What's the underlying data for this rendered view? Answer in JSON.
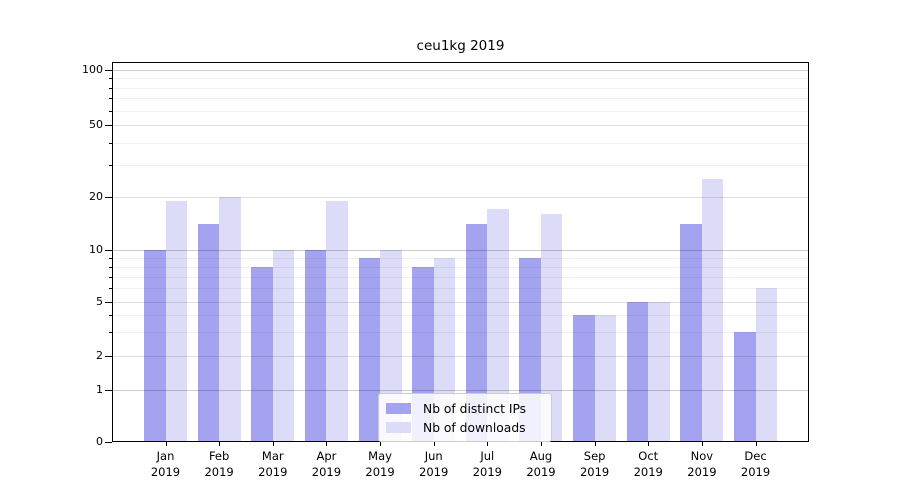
{
  "chart_data": {
    "type": "bar",
    "title": "ceu1kg 2019",
    "x_axis": {
      "months": [
        "Jan",
        "Feb",
        "Mar",
        "Apr",
        "May",
        "Jun",
        "Jul",
        "Aug",
        "Sep",
        "Oct",
        "Nov",
        "Dec"
      ],
      "year": "2019"
    },
    "y_axis": {
      "scale": "log-like (symlog with 0 baseline)",
      "tick_labels": [
        "100",
        "50",
        "20",
        "10",
        "5",
        "2",
        "1",
        "0"
      ],
      "tick_values": [
        100,
        50,
        20,
        10,
        5,
        2,
        1,
        0
      ],
      "range": [
        0,
        110
      ],
      "grid": true
    },
    "series": [
      {
        "name": "Nb of distinct IPs",
        "color": "#a3a3f0",
        "values": [
          10,
          14,
          8,
          10,
          9,
          8,
          14,
          9,
          4,
          5,
          14,
          3
        ]
      },
      {
        "name": "Nb of downloads",
        "color": "#dcdcf9",
        "values": [
          19,
          20,
          10,
          19,
          10,
          9,
          17,
          16,
          4,
          5,
          25,
          6
        ]
      }
    ],
    "legend": {
      "position": "lower-center"
    }
  }
}
